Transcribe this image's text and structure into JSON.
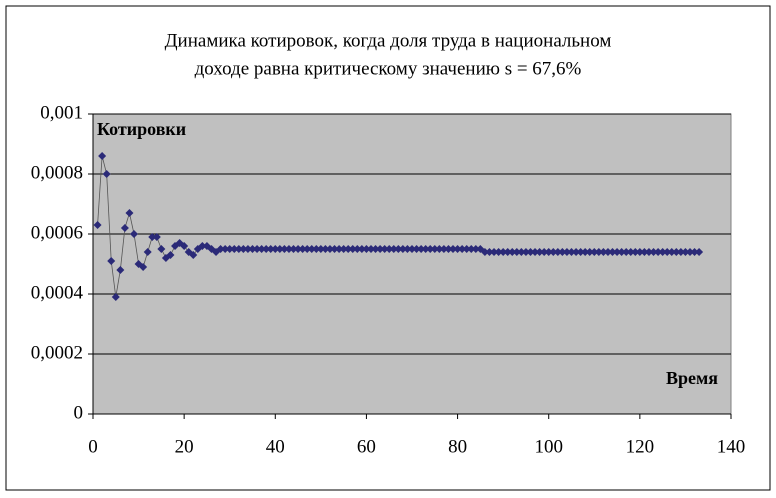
{
  "chart_data": {
    "type": "line",
    "title": [
      "Динамика котировок, когда доля труда в национальном",
      "доходе равна критическому значению s = 67,6%"
    ],
    "y_label": "Котировки",
    "x_label": "Время",
    "color": "#2b2a78",
    "grid": true,
    "xlim": [
      0,
      140
    ],
    "xticks": [
      0,
      20,
      40,
      60,
      80,
      100,
      120,
      140
    ],
    "ylim": [
      0,
      0.001
    ],
    "yticks": [
      0,
      {
        "value": 0.0002,
        "label": "0,0002"
      },
      {
        "value": 0.0004,
        "label": "0,0004"
      },
      {
        "value": 0.0006,
        "label": "0,0006"
      },
      {
        "value": 0.0008,
        "label": "0,0008"
      },
      {
        "value": 0.001,
        "label": "0,001"
      }
    ],
    "x": [
      1,
      2,
      3,
      4,
      5,
      6,
      7,
      8,
      9,
      10,
      11,
      12,
      13,
      14,
      15,
      16,
      17,
      18,
      19,
      20,
      21,
      22,
      23,
      24,
      25,
      26,
      27,
      28,
      29,
      30,
      31,
      32,
      33,
      34,
      35,
      36,
      37,
      38,
      39,
      40,
      41,
      42,
      43,
      44,
      45,
      46,
      47,
      48,
      49,
      50,
      51,
      52,
      53,
      54,
      55,
      56,
      57,
      58,
      59,
      60,
      61,
      62,
      63,
      64,
      65,
      66,
      67,
      68,
      69,
      70,
      71,
      72,
      73,
      74,
      75,
      76,
      77,
      78,
      79,
      80,
      81,
      82,
      83,
      84,
      85,
      86,
      87,
      88,
      89,
      90,
      91,
      92,
      93,
      94,
      95,
      96,
      97,
      98,
      99,
      100,
      101,
      102,
      103,
      104,
      105,
      106,
      107,
      108,
      109,
      110,
      111,
      112,
      113,
      114,
      115,
      116,
      117,
      118,
      119,
      120,
      121,
      122,
      123,
      124,
      125,
      126,
      127,
      128,
      129,
      130,
      131,
      132,
      133
    ],
    "values": [
      0.00063,
      0.00086,
      0.0008,
      0.00051,
      0.00039,
      0.00048,
      0.00062,
      0.00067,
      0.0006,
      0.0005,
      0.00049,
      0.00054,
      0.00059,
      0.00059,
      0.00055,
      0.00052,
      0.00053,
      0.00056,
      0.00057,
      0.00056,
      0.00054,
      0.00053,
      0.00055,
      0.00056,
      0.00056,
      0.00055,
      0.00054,
      0.00055,
      0.00055,
      0.00055,
      0.00055,
      0.00055,
      0.00055,
      0.00055,
      0.00055,
      0.00055,
      0.00055,
      0.00055,
      0.00055,
      0.00055,
      0.00055,
      0.00055,
      0.00055,
      0.00055,
      0.00055,
      0.00055,
      0.00055,
      0.00055,
      0.00055,
      0.00055,
      0.00055,
      0.00055,
      0.00055,
      0.00055,
      0.00055,
      0.00055,
      0.00055,
      0.00055,
      0.00055,
      0.00055,
      0.00055,
      0.00055,
      0.00055,
      0.00055,
      0.00055,
      0.00055,
      0.00055,
      0.00055,
      0.00055,
      0.00055,
      0.00055,
      0.00055,
      0.00055,
      0.00055,
      0.00055,
      0.00055,
      0.00055,
      0.00055,
      0.00055,
      0.00055,
      0.00055,
      0.00055,
      0.00055,
      0.00055,
      0.00055,
      0.00054,
      0.00054,
      0.00054,
      0.00054,
      0.00054,
      0.00054,
      0.00054,
      0.00054,
      0.00054,
      0.00054,
      0.00054,
      0.00054,
      0.00054,
      0.00054,
      0.00054,
      0.00054,
      0.00054,
      0.00054,
      0.00054,
      0.00054,
      0.00054,
      0.00054,
      0.00054,
      0.00054,
      0.00054,
      0.00054,
      0.00054,
      0.00054,
      0.00054,
      0.00054,
      0.00054,
      0.00054,
      0.00054,
      0.00054,
      0.00054,
      0.00054,
      0.00054,
      0.00054,
      0.00054,
      0.00054,
      0.00054,
      0.00054,
      0.00054,
      0.00054,
      0.00054,
      0.00054,
      0.00054,
      0.00054
    ]
  }
}
